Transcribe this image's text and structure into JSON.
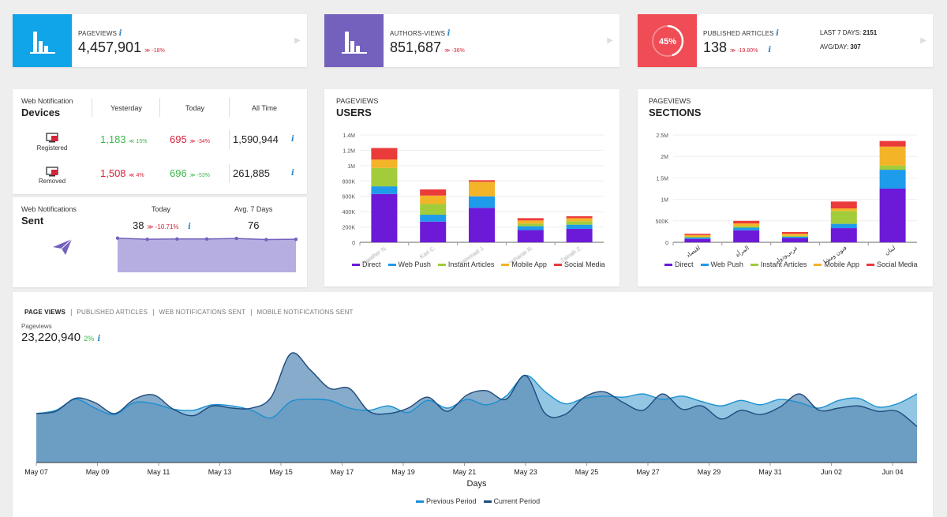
{
  "kpis": [
    {
      "label": "PAGEVIEWS",
      "value": "4,457,901",
      "change": "-18%",
      "color": "#10a4e8"
    },
    {
      "label": "AUTHORS-VIEWS",
      "value": "851,687",
      "change": "-36%",
      "color": "#7460bd"
    },
    {
      "label": "PUBLISHED ARTICLES",
      "value": "138",
      "change": "-19.80%",
      "color": "#ef4c55",
      "ring": "45%",
      "extra1_label": "LAST 7 DAYS:",
      "extra1_value": "2151",
      "extra2_label": "AVG/DAY:",
      "extra2_value": "307"
    }
  ],
  "devices": {
    "sub": "Web Notification",
    "title": "Devices",
    "cols": [
      "Yesterday",
      "Today",
      "All Time"
    ],
    "rows": [
      {
        "label": "Registered",
        "yesterday": "1,183",
        "y_change": "15%",
        "today": "695",
        "t_change": "-34%",
        "all": "1,590,944"
      },
      {
        "label": "Removed",
        "yesterday": "1,508",
        "y_change": "4%",
        "today": "696",
        "t_change": "-53%",
        "all": "261,885"
      }
    ]
  },
  "sent": {
    "sub": "Web Notifications",
    "title": "Sent",
    "today_label": "Today",
    "avg_label": "Avg. 7 Days",
    "today_value": "38",
    "today_change": "-10.71%",
    "avg_value": "76",
    "spark": [
      30,
      26,
      27,
      27,
      29,
      25,
      26
    ]
  },
  "users": {
    "sub": "PAGEVIEWS",
    "title": "USERS",
    "chart_data": {
      "type": "bar",
      "categories": [
        "Jawaher N.",
        "Kari C.",
        "Mohammad J.",
        "Stephanie R.",
        "Zainah Z."
      ],
      "yticks": [
        "0",
        "200K",
        "400K",
        "600K",
        "800K",
        "1M",
        "1.2M",
        "1.4M"
      ],
      "ylim": [
        0,
        1400000
      ],
      "series": [
        {
          "name": "Direct",
          "color": "#6c1ad8",
          "values": [
            630000,
            270000,
            450000,
            160000,
            175000
          ]
        },
        {
          "name": "Web Push",
          "color": "#1e9bea",
          "values": [
            100000,
            90000,
            150000,
            50000,
            55000
          ]
        },
        {
          "name": "Instant Articles",
          "color": "#a2cc3a",
          "values": [
            240000,
            140000,
            0,
            35000,
            45000
          ]
        },
        {
          "name": "Mobile App",
          "color": "#f4b428",
          "values": [
            110000,
            110000,
            190000,
            40000,
            40000
          ]
        },
        {
          "name": "Social Media",
          "color": "#ea3a3a",
          "values": [
            150000,
            80000,
            20000,
            30000,
            25000
          ]
        }
      ]
    }
  },
  "sections": {
    "sub": "PAGEVIEWS",
    "title": "SECTIONS",
    "chart_data": {
      "type": "bar",
      "categories": [
        "اقتصاد",
        "المرأة",
        "عربي‌ودولي",
        "فنون ومشاهير",
        "لبنان"
      ],
      "yticks": [
        "0",
        "500K",
        "1M",
        "1.5M",
        "2M",
        "2.5M"
      ],
      "ylim": [
        0,
        2500000
      ],
      "series": [
        {
          "name": "Direct",
          "color": "#6c1ad8",
          "values": [
            80000,
            280000,
            100000,
            330000,
            1250000
          ]
        },
        {
          "name": "Web Push",
          "color": "#1e9bea",
          "values": [
            30000,
            60000,
            30000,
            100000,
            440000
          ]
        },
        {
          "name": "Instant Articles",
          "color": "#a2cc3a",
          "values": [
            20000,
            40000,
            20000,
            300000,
            100000
          ]
        },
        {
          "name": "Mobile App",
          "color": "#f4b428",
          "values": [
            40000,
            60000,
            50000,
            60000,
            440000
          ]
        },
        {
          "name": "Social Media",
          "color": "#ea3a3a",
          "values": [
            30000,
            60000,
            40000,
            160000,
            130000
          ]
        }
      ]
    }
  },
  "pageviews": {
    "tabs": [
      "PAGE VIEWS",
      "PUBLISHED ARTICLES",
      "WEB NOTIFICATIONS SENT",
      "MOBILE NOTIFICATIONS SENT"
    ],
    "sub": "Pageviews",
    "value": "23,220,940",
    "change": "2%",
    "chart_data": {
      "type": "area",
      "x_label": "Days",
      "xticks": [
        "May 07",
        "May 09",
        "May 11",
        "May 13",
        "May 15",
        "May 17",
        "May 19",
        "May 21",
        "May 23",
        "May 25",
        "May 27",
        "May 29",
        "May 31",
        "Jun 02",
        "Jun 04"
      ],
      "series": [
        {
          "name": "Previous Period",
          "color": "#1a8fd0",
          "values": [
            0.45,
            0.48,
            0.58,
            0.5,
            0.44,
            0.55,
            0.54,
            0.49,
            0.48,
            0.53,
            0.52,
            0.48,
            0.41,
            0.56,
            0.58,
            0.57,
            0.5,
            0.48,
            0.52,
            0.46,
            0.57,
            0.5,
            0.58,
            0.53,
            0.61,
            0.8,
            0.65,
            0.54,
            0.59,
            0.61,
            0.6,
            0.63,
            0.58,
            0.61,
            0.56,
            0.52,
            0.57,
            0.53,
            0.58,
            0.55,
            0.5,
            0.57,
            0.59,
            0.51,
            0.54,
            0.63
          ]
        },
        {
          "name": "Current Period",
          "color": "#1f4a7c",
          "values": [
            0.45,
            0.47,
            0.59,
            0.55,
            0.45,
            0.58,
            0.62,
            0.49,
            0.43,
            0.52,
            0.5,
            0.5,
            0.6,
            1.0,
            0.85,
            0.68,
            0.68,
            0.47,
            0.45,
            0.5,
            0.6,
            0.47,
            0.62,
            0.66,
            0.58,
            0.8,
            0.45,
            0.44,
            0.6,
            0.65,
            0.55,
            0.48,
            0.63,
            0.49,
            0.52,
            0.4,
            0.48,
            0.44,
            0.51,
            0.63,
            0.48,
            0.5,
            0.52,
            0.47,
            0.47,
            0.33
          ]
        }
      ]
    }
  }
}
